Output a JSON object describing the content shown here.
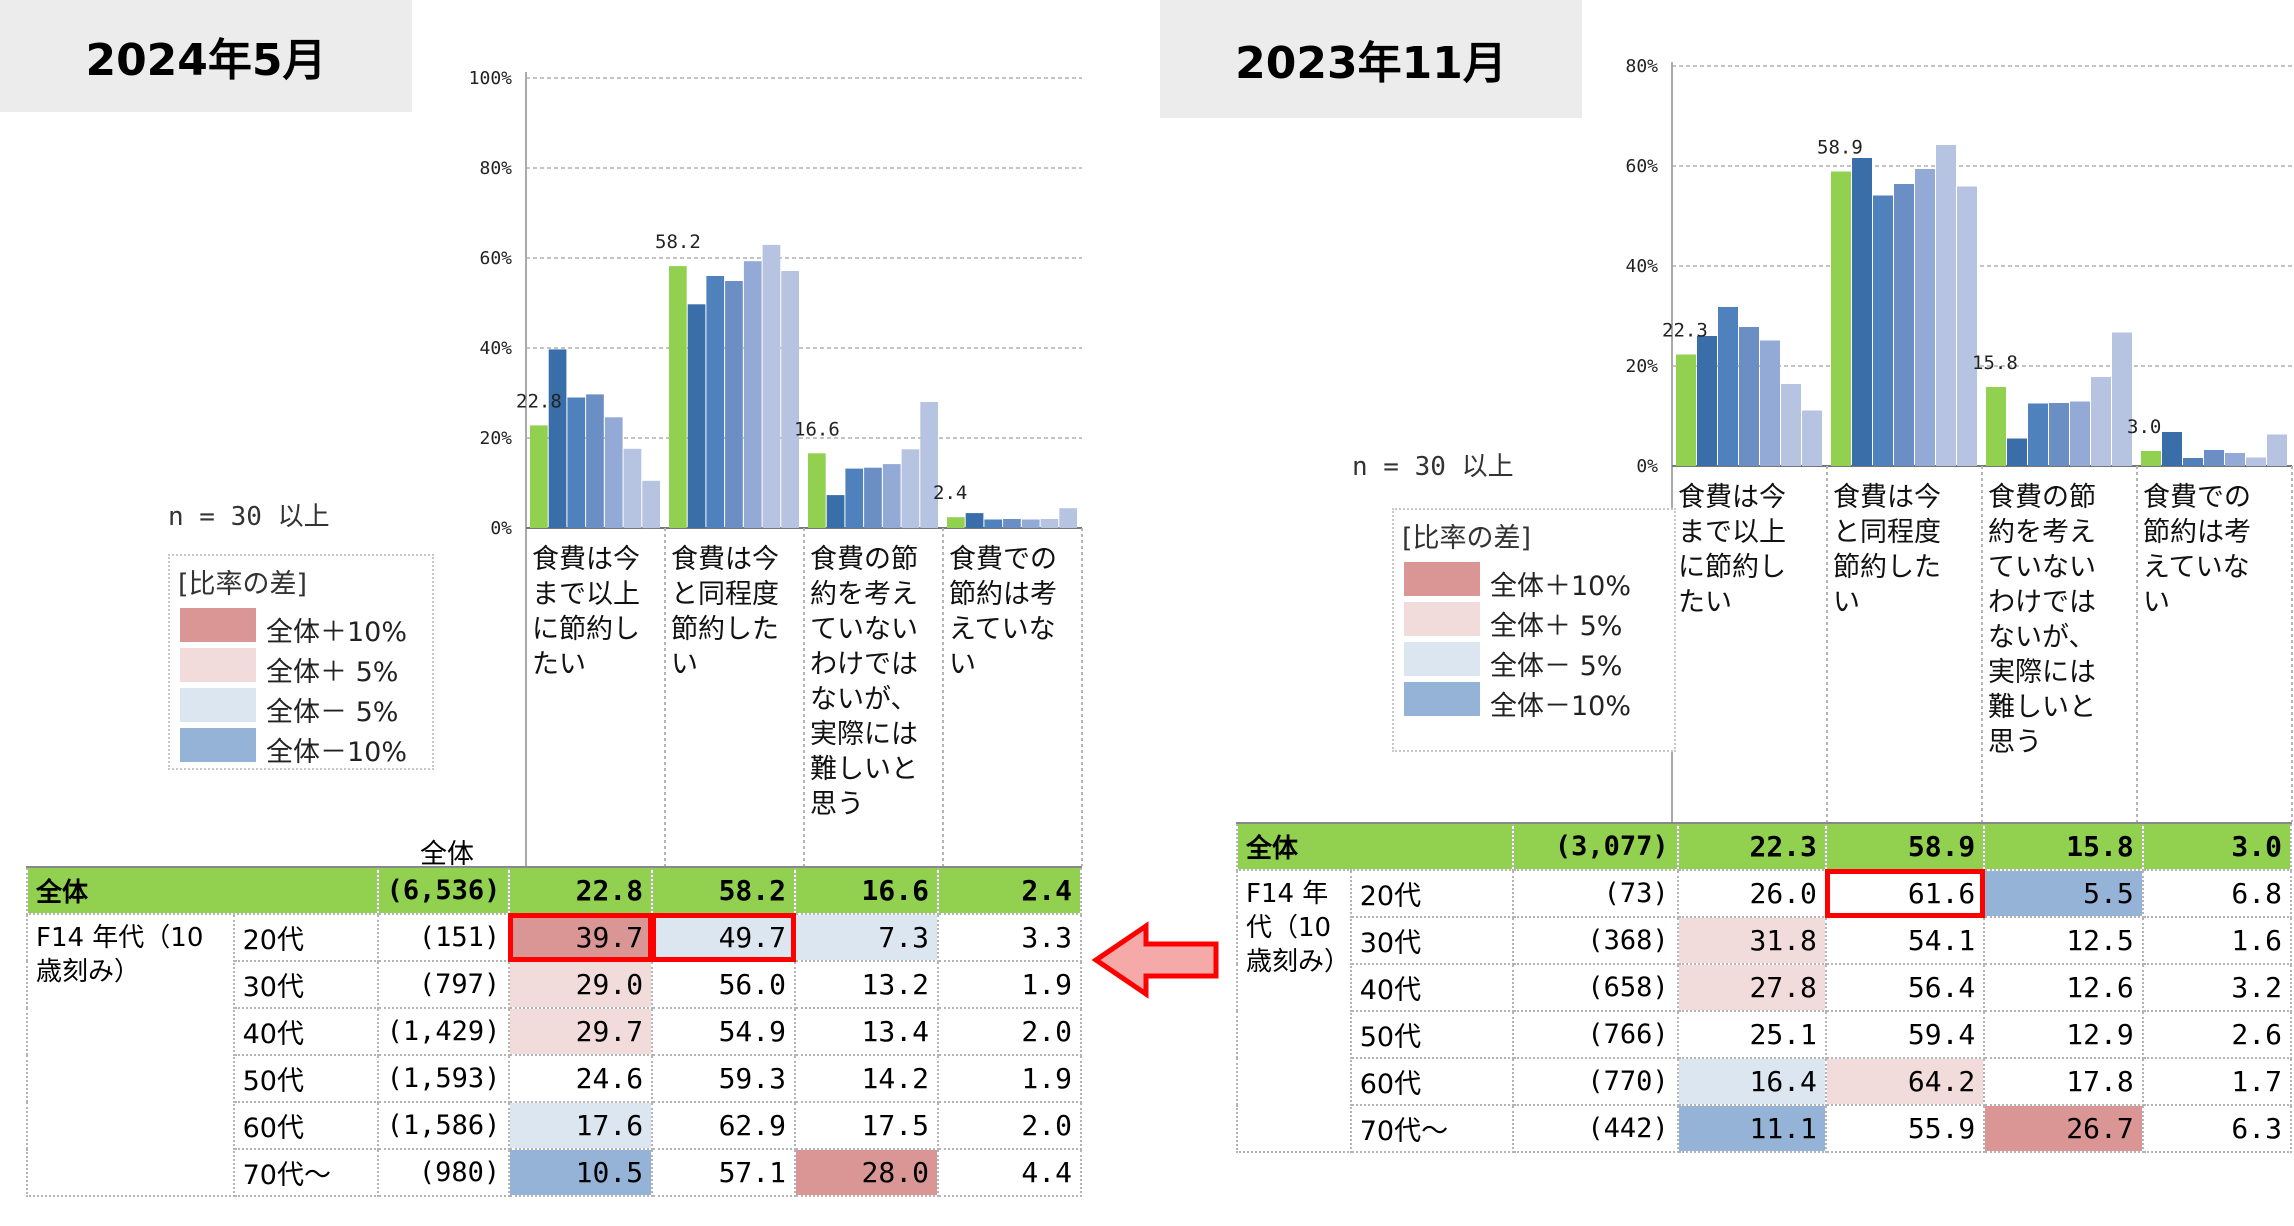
{
  "colors": {
    "series": [
      "#92d050",
      "#3a6ea8",
      "#4f81bd",
      "#6b8fc4",
      "#93a9d6",
      "#b6c4e1"
    ],
    "plus10": "#d99694",
    "plus5": "#f2dcdb",
    "minus5": "#dce6f1",
    "minus10": "#95b3d7",
    "total_row": "#92d050",
    "highlight": "#ff0000",
    "arrow_fill": "#f5a9a9",
    "arrow_stroke": "#ff0000"
  },
  "left": {
    "title": "2024年5月",
    "n_label": "n = 30 以上",
    "legend": {
      "title": "[比率の差]",
      "items": [
        {
          "label": "全体＋10%",
          "color": "#d99694"
        },
        {
          "label": "全体＋ 5%",
          "color": "#f2dcdb"
        },
        {
          "label": "全体－ 5%",
          "color": "#dce6f1"
        },
        {
          "label": "全体－10%",
          "color": "#95b3d7"
        }
      ]
    },
    "table": {
      "total_header": "全体",
      "group_label": "F14 年代（10歳刻み）",
      "total": {
        "label": "全体",
        "count": "(6,536)",
        "values": [
          "22.8",
          "58.2",
          "16.6",
          "2.4"
        ]
      },
      "rows": [
        {
          "age": "20代",
          "count": "(151)",
          "values": [
            "39.7",
            "49.7",
            "7.3",
            "3.3"
          ]
        },
        {
          "age": "30代",
          "count": "(797)",
          "values": [
            "29.0",
            "56.0",
            "13.2",
            "1.9"
          ]
        },
        {
          "age": "40代",
          "count": "(1,429)",
          "values": [
            "29.7",
            "54.9",
            "13.4",
            "2.0"
          ]
        },
        {
          "age": "50代",
          "count": "(1,593)",
          "values": [
            "24.6",
            "59.3",
            "14.2",
            "1.9"
          ]
        },
        {
          "age": "60代",
          "count": "(1,586)",
          "values": [
            "17.6",
            "62.9",
            "17.5",
            "2.0"
          ]
        },
        {
          "age": "70代～",
          "count": "(980)",
          "values": [
            "10.5",
            "57.1",
            "28.0",
            "4.4"
          ]
        }
      ]
    }
  },
  "right": {
    "title": "2023年11月",
    "n_label": "n = 30 以上",
    "legend": {
      "title": "[比率の差]",
      "items": [
        {
          "label": "全体＋10%",
          "color": "#d99694"
        },
        {
          "label": "全体＋ 5%",
          "color": "#f2dcdb"
        },
        {
          "label": "全体－ 5%",
          "color": "#dce6f1"
        },
        {
          "label": "全体－10%",
          "color": "#95b3d7"
        }
      ]
    },
    "table": {
      "group_label": "F14 年代（10歳刻み）",
      "total": {
        "label": "全体",
        "count": "(3,077)",
        "values": [
          "22.3",
          "58.9",
          "15.8",
          "3.0"
        ]
      },
      "rows": [
        {
          "age": "20代",
          "count": "(73)",
          "values": [
            "26.0",
            "61.6",
            "5.5",
            "6.8"
          ]
        },
        {
          "age": "30代",
          "count": "(368)",
          "values": [
            "31.8",
            "54.1",
            "12.5",
            "1.6"
          ]
        },
        {
          "age": "40代",
          "count": "(658)",
          "values": [
            "27.8",
            "56.4",
            "12.6",
            "3.2"
          ]
        },
        {
          "age": "50代",
          "count": "(766)",
          "values": [
            "25.1",
            "59.4",
            "12.9",
            "2.6"
          ]
        },
        {
          "age": "60代",
          "count": "(770)",
          "values": [
            "16.4",
            "64.2",
            "17.8",
            "1.7"
          ]
        },
        {
          "age": "70代～",
          "count": "(442)",
          "values": [
            "11.1",
            "55.9",
            "26.7",
            "6.3"
          ]
        }
      ]
    }
  },
  "chart_data": [
    {
      "type": "bar",
      "title": "2024年5月",
      "categories": [
        "食費は今まで以上に節約したい",
        "食費は今と同程度節約したい",
        "食費の節約を考えていないわけではないが、実際には難しいと思う",
        "食費での節約は考えていない"
      ],
      "category_lines": [
        [
          "食費は今",
          "まで以上",
          "に節約し",
          "たい"
        ],
        [
          "食費は今",
          "と同程度",
          "節約した",
          "い"
        ],
        [
          "食費の節",
          "約を考え",
          "ていない",
          "わけでは",
          "ないが、",
          "実際には",
          "難しいと",
          "思う"
        ],
        [
          "食費での",
          "節約は考",
          "えていな",
          "い"
        ]
      ],
      "yticks": [
        "0%",
        "20%",
        "40%",
        "60%",
        "80%",
        "100%"
      ],
      "ylim": [
        0,
        100
      ],
      "data_labels": [
        "22.8",
        "58.2",
        "16.6",
        "2.4"
      ],
      "series": [
        {
          "name": "全体",
          "values": [
            22.8,
            58.2,
            16.6,
            2.4
          ]
        },
        {
          "name": "20代",
          "values": [
            39.7,
            49.7,
            7.3,
            3.3
          ]
        },
        {
          "name": "30代",
          "values": [
            29.0,
            56.0,
            13.2,
            1.9
          ]
        },
        {
          "name": "40代",
          "values": [
            29.7,
            54.9,
            13.4,
            2.0
          ]
        },
        {
          "name": "50代",
          "values": [
            24.6,
            59.3,
            14.2,
            1.9
          ]
        },
        {
          "name": "60代",
          "values": [
            17.6,
            62.9,
            17.5,
            2.0
          ]
        },
        {
          "name": "70代～",
          "values": [
            10.5,
            57.1,
            28.0,
            4.4
          ]
        }
      ],
      "grid": true
    },
    {
      "type": "bar",
      "title": "2023年11月",
      "categories": [
        "食費は今まで以上に節約したい",
        "食費は今と同程度節約したい",
        "食費の節約を考えていないわけではないが、実際には難しいと思う",
        "食費での節約は考えていない"
      ],
      "category_lines": [
        [
          "食費は今",
          "まで以上",
          "に節約し",
          "たい"
        ],
        [
          "食費は今",
          "と同程度",
          "節約した",
          "い"
        ],
        [
          "食費の節",
          "約を考え",
          "ていない",
          "わけでは",
          "ないが、",
          "実際には",
          "難しいと",
          "思う"
        ],
        [
          "食費での",
          "節約は考",
          "えていな",
          "い"
        ]
      ],
      "yticks": [
        "0%",
        "20%",
        "40%",
        "60%",
        "80%"
      ],
      "ylim": [
        0,
        80
      ],
      "data_labels": [
        "22.3",
        "58.9",
        "15.8",
        "3.0"
      ],
      "series": [
        {
          "name": "全体",
          "values": [
            22.3,
            58.9,
            15.8,
            3.0
          ]
        },
        {
          "name": "20代",
          "values": [
            26.0,
            61.6,
            5.5,
            6.8
          ]
        },
        {
          "name": "30代",
          "values": [
            31.8,
            54.1,
            12.5,
            1.6
          ]
        },
        {
          "name": "40代",
          "values": [
            27.8,
            56.4,
            12.6,
            3.2
          ]
        },
        {
          "name": "50代",
          "values": [
            25.1,
            59.4,
            12.9,
            2.6
          ]
        },
        {
          "name": "60代",
          "values": [
            16.4,
            64.2,
            17.8,
            1.7
          ]
        },
        {
          "name": "70代～",
          "values": [
            11.1,
            55.9,
            26.7,
            6.3
          ]
        }
      ],
      "grid": true
    }
  ]
}
